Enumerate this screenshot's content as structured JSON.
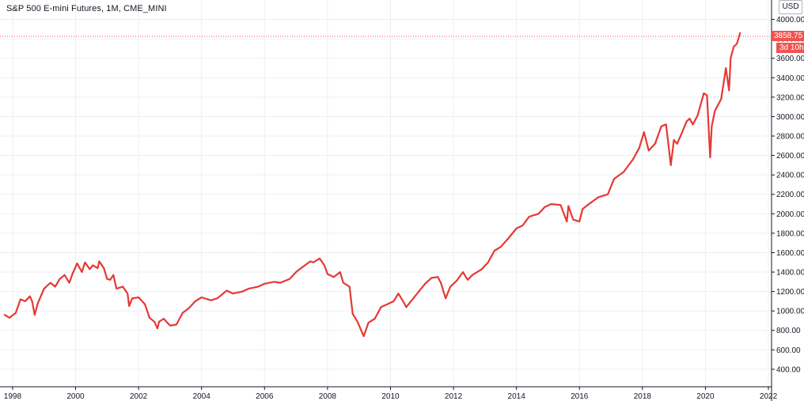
{
  "header": {
    "title": "S&P 500 E-mini Futures, 1M, CME_MINI",
    "currency_button": "USD"
  },
  "price_label": "3858.75",
  "countdown_label": "3d 10h",
  "colors": {
    "line": "#e53935",
    "tag": "#ef5350",
    "grid": "#eceff3",
    "axis_text": "#131722"
  },
  "chart_data": {
    "type": "line",
    "title": "S&P 500 E-mini Futures, 1M, CME_MINI",
    "xlabel": "",
    "ylabel": "",
    "x_ticks": [
      "1998",
      "2000",
      "2002",
      "2004",
      "2006",
      "2008",
      "2010",
      "2012",
      "2014",
      "2016",
      "2018",
      "2020",
      "2022"
    ],
    "y_ticks": [
      "400.00",
      "600.00",
      "800.00",
      "1000.00",
      "1200.00",
      "1400.00",
      "1600.00",
      "1800.00",
      "2000.00",
      "2200.00",
      "2400.00",
      "2600.00",
      "2800.00",
      "3000.00",
      "3200.00",
      "3400.00",
      "3600.00",
      "3800.00",
      "4000.00"
    ],
    "xlim": [
      1997.6,
      2022.1
    ],
    "ylim": [
      220,
      4200
    ],
    "last_value": 3858.75,
    "grid": true,
    "series": [
      {
        "x": [
          1997.75,
          1997.9,
          1998.1,
          1998.25,
          1998.4,
          1998.55,
          1998.62,
          1998.7,
          1998.8,
          1999.0,
          1999.2,
          1999.35,
          1999.5,
          1999.65,
          1999.8,
          1999.9,
          2000.05,
          2000.2,
          2000.3,
          2000.45,
          2000.55,
          2000.7,
          2000.75,
          2000.9,
          2001.0,
          2001.1,
          2001.2,
          2001.3,
          2001.5,
          2001.65,
          2001.7,
          2001.8,
          2002.0,
          2002.2,
          2002.35,
          2002.5,
          2002.6,
          2002.65,
          2002.8,
          2003.0,
          2003.2,
          2003.4,
          2003.6,
          2003.8,
          2004.0,
          2004.3,
          2004.5,
          2004.8,
          2005.0,
          2005.3,
          2005.5,
          2005.8,
          2006.0,
          2006.3,
          2006.5,
          2006.8,
          2007.0,
          2007.2,
          2007.45,
          2007.55,
          2007.75,
          2007.9,
          2008.0,
          2008.2,
          2008.4,
          2008.5,
          2008.7,
          2008.8,
          2008.95,
          2009.15,
          2009.3,
          2009.5,
          2009.7,
          2009.9,
          2010.1,
          2010.25,
          2010.4,
          2010.5,
          2010.7,
          2010.9,
          2011.1,
          2011.3,
          2011.5,
          2011.6,
          2011.75,
          2011.9,
          2012.1,
          2012.3,
          2012.45,
          2012.6,
          2012.9,
          2013.1,
          2013.3,
          2013.5,
          2013.75,
          2014.0,
          2014.2,
          2014.4,
          2014.7,
          2014.9,
          2015.1,
          2015.4,
          2015.6,
          2015.65,
          2015.8,
          2016.0,
          2016.1,
          2016.3,
          2016.6,
          2016.9,
          2017.1,
          2017.4,
          2017.7,
          2017.9,
          2018.05,
          2018.2,
          2018.4,
          2018.6,
          2018.75,
          2018.9,
          2019.0,
          2019.1,
          2019.25,
          2019.4,
          2019.5,
          2019.6,
          2019.75,
          2019.95,
          2020.05,
          2020.15,
          2020.2,
          2020.3,
          2020.5,
          2020.65,
          2020.75,
          2020.8,
          2020.9,
          2021.0,
          2021.1
        ],
        "y": [
          960,
          930,
          980,
          1120,
          1100,
          1150,
          1100,
          960,
          1080,
          1230,
          1290,
          1250,
          1330,
          1370,
          1290,
          1380,
          1490,
          1400,
          1500,
          1430,
          1470,
          1440,
          1510,
          1440,
          1330,
          1320,
          1370,
          1230,
          1250,
          1180,
          1050,
          1130,
          1140,
          1070,
          930,
          890,
          820,
          890,
          920,
          850,
          860,
          980,
          1030,
          1100,
          1140,
          1110,
          1130,
          1210,
          1180,
          1200,
          1230,
          1250,
          1280,
          1300,
          1290,
          1330,
          1400,
          1450,
          1510,
          1500,
          1540,
          1470,
          1380,
          1350,
          1400,
          1290,
          1250,
          970,
          890,
          740,
          880,
          920,
          1040,
          1070,
          1100,
          1180,
          1100,
          1040,
          1120,
          1200,
          1280,
          1340,
          1350,
          1290,
          1130,
          1250,
          1310,
          1400,
          1320,
          1370,
          1430,
          1500,
          1620,
          1660,
          1750,
          1850,
          1880,
          1970,
          2000,
          2070,
          2100,
          2090,
          1920,
          2080,
          1940,
          1920,
          2050,
          2100,
          2170,
          2200,
          2360,
          2430,
          2560,
          2680,
          2840,
          2650,
          2720,
          2900,
          2920,
          2500,
          2760,
          2720,
          2830,
          2950,
          2980,
          2920,
          3010,
          3240,
          3220,
          2580,
          2900,
          3060,
          3180,
          3500,
          3270,
          3600,
          3720,
          3750,
          3858.75
        ]
      }
    ]
  }
}
